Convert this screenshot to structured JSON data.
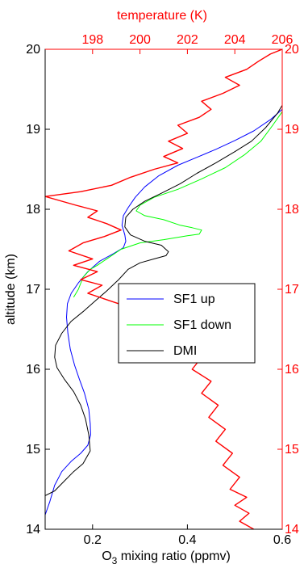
{
  "chart_data": {
    "type": "line",
    "bottom_axis": {
      "label": "O3 mixing ratio (ppmv)",
      "label_main": "O",
      "label_sub": "3",
      "label_rest": " mixing ratio (ppmv)",
      "range": [
        0.1,
        0.6
      ],
      "ticks": [
        0.2,
        0.4,
        0.6
      ],
      "tick_labels": [
        "0.2",
        "0.4",
        "0.6"
      ],
      "color": "#000000"
    },
    "top_axis": {
      "label": "temperature (K)",
      "range": [
        196,
        206
      ],
      "ticks": [
        198,
        200,
        202,
        204,
        206
      ],
      "tick_labels": [
        "198",
        "200",
        "202",
        "204",
        "206"
      ],
      "color": "#ff0000"
    },
    "left_axis": {
      "label": "altitude (km)",
      "range": [
        14,
        20
      ],
      "ticks": [
        14,
        15,
        16,
        17,
        18,
        19,
        20
      ],
      "tick_labels": [
        "14",
        "15",
        "16",
        "17",
        "18",
        "19",
        "20"
      ],
      "color": "#000000"
    },
    "right_axis": {
      "range": [
        14,
        20
      ],
      "ticks": [
        14,
        15,
        16,
        17,
        18,
        19,
        20
      ],
      "tick_labels": [
        "14",
        "15",
        "16",
        "17",
        "18",
        "19",
        "20"
      ],
      "color": "#ff0000"
    },
    "grid": false,
    "legend_position": "center-right",
    "legend": [
      "SF1 up",
      "SF1 down",
      "DMI"
    ],
    "series": [
      {
        "name": "SF1 up",
        "axis": "bottom",
        "color": "#0000ff",
        "points": [
          [
            0.1,
            14.18
          ],
          [
            0.11,
            14.35
          ],
          [
            0.12,
            14.55
          ],
          [
            0.135,
            14.72
          ],
          [
            0.155,
            14.85
          ],
          [
            0.175,
            14.95
          ],
          [
            0.19,
            15.05
          ],
          [
            0.196,
            15.18
          ],
          [
            0.195,
            15.32
          ],
          [
            0.192,
            15.5
          ],
          [
            0.183,
            15.7
          ],
          [
            0.172,
            15.88
          ],
          [
            0.162,
            16.05
          ],
          [
            0.153,
            16.25
          ],
          [
            0.148,
            16.45
          ],
          [
            0.145,
            16.65
          ],
          [
            0.147,
            16.82
          ],
          [
            0.155,
            16.95
          ],
          [
            0.17,
            17.08
          ],
          [
            0.19,
            17.22
          ],
          [
            0.215,
            17.35
          ],
          [
            0.245,
            17.45
          ],
          [
            0.265,
            17.52
          ],
          [
            0.27,
            17.6
          ],
          [
            0.268,
            17.68
          ],
          [
            0.262,
            17.8
          ],
          [
            0.265,
            17.92
          ],
          [
            0.275,
            18.02
          ],
          [
            0.29,
            18.15
          ],
          [
            0.31,
            18.28
          ],
          [
            0.34,
            18.42
          ],
          [
            0.38,
            18.55
          ],
          [
            0.42,
            18.65
          ],
          [
            0.46,
            18.75
          ],
          [
            0.5,
            18.86
          ],
          [
            0.54,
            18.98
          ],
          [
            0.575,
            19.12
          ],
          [
            0.6,
            19.25
          ]
        ]
      },
      {
        "name": "SF1 down",
        "axis": "bottom",
        "color": "#00ff00",
        "points": [
          [
            0.16,
            16.9
          ],
          [
            0.17,
            17.0
          ],
          [
            0.18,
            17.15
          ],
          [
            0.195,
            17.25
          ],
          [
            0.21,
            17.3
          ],
          [
            0.23,
            17.38
          ],
          [
            0.26,
            17.5
          ],
          [
            0.3,
            17.58
          ],
          [
            0.35,
            17.62
          ],
          [
            0.4,
            17.67
          ],
          [
            0.425,
            17.69
          ],
          [
            0.43,
            17.74
          ],
          [
            0.41,
            17.77
          ],
          [
            0.385,
            17.8
          ],
          [
            0.35,
            17.87
          ],
          [
            0.31,
            17.92
          ],
          [
            0.292,
            17.98
          ],
          [
            0.3,
            18.05
          ],
          [
            0.33,
            18.15
          ],
          [
            0.38,
            18.25
          ],
          [
            0.43,
            18.38
          ],
          [
            0.48,
            18.52
          ],
          [
            0.52,
            18.68
          ],
          [
            0.555,
            18.85
          ],
          [
            0.58,
            19.05
          ],
          [
            0.6,
            19.22
          ]
        ]
      },
      {
        "name": "DMI",
        "axis": "bottom",
        "color": "#000000",
        "points": [
          [
            0.1,
            14.42
          ],
          [
            0.12,
            14.48
          ],
          [
            0.14,
            14.6
          ],
          [
            0.16,
            14.72
          ],
          [
            0.18,
            14.82
          ],
          [
            0.195,
            14.98
          ],
          [
            0.192,
            15.18
          ],
          [
            0.185,
            15.38
          ],
          [
            0.175,
            15.55
          ],
          [
            0.16,
            15.72
          ],
          [
            0.14,
            15.88
          ],
          [
            0.125,
            16.02
          ],
          [
            0.12,
            16.15
          ],
          [
            0.122,
            16.3
          ],
          [
            0.135,
            16.45
          ],
          [
            0.155,
            16.6
          ],
          [
            0.18,
            16.72
          ],
          [
            0.205,
            16.85
          ],
          [
            0.23,
            16.98
          ],
          [
            0.255,
            17.12
          ],
          [
            0.275,
            17.25
          ],
          [
            0.3,
            17.33
          ],
          [
            0.33,
            17.38
          ],
          [
            0.355,
            17.42
          ],
          [
            0.36,
            17.47
          ],
          [
            0.345,
            17.55
          ],
          [
            0.31,
            17.6
          ],
          [
            0.28,
            17.68
          ],
          [
            0.268,
            17.78
          ],
          [
            0.27,
            17.9
          ],
          [
            0.285,
            18.0
          ],
          [
            0.31,
            18.1
          ],
          [
            0.345,
            18.2
          ],
          [
            0.385,
            18.32
          ],
          [
            0.42,
            18.45
          ],
          [
            0.46,
            18.58
          ],
          [
            0.5,
            18.72
          ],
          [
            0.535,
            18.85
          ],
          [
            0.565,
            19.02
          ],
          [
            0.59,
            19.2
          ],
          [
            0.6,
            19.3
          ]
        ]
      },
      {
        "name": "temperature",
        "axis": "top",
        "color": "#ff0000",
        "points": [
          [
            204.8,
            14.0
          ],
          [
            204.2,
            14.1
          ],
          [
            204.6,
            14.2
          ],
          [
            204.0,
            14.3
          ],
          [
            204.5,
            14.4
          ],
          [
            203.8,
            14.5
          ],
          [
            204.2,
            14.65
          ],
          [
            203.5,
            14.8
          ],
          [
            203.9,
            14.95
          ],
          [
            203.2,
            15.1
          ],
          [
            203.6,
            15.25
          ],
          [
            202.9,
            15.4
          ],
          [
            203.3,
            15.55
          ],
          [
            202.6,
            15.7
          ],
          [
            203.0,
            15.85
          ],
          [
            202.2,
            16.0
          ],
          [
            202.6,
            16.15
          ],
          [
            201.8,
            16.3
          ],
          [
            202.2,
            16.42
          ],
          [
            201.3,
            16.55
          ],
          [
            200.5,
            16.68
          ],
          [
            199.5,
            16.78
          ],
          [
            198.6,
            16.87
          ],
          [
            197.8,
            16.95
          ],
          [
            198.4,
            17.05
          ],
          [
            197.5,
            17.12
          ],
          [
            198.2,
            17.22
          ],
          [
            197.2,
            17.3
          ],
          [
            198.0,
            17.38
          ],
          [
            197.0,
            17.48
          ],
          [
            197.6,
            17.58
          ],
          [
            198.5,
            17.66
          ],
          [
            199.2,
            17.74
          ],
          [
            198.6,
            17.82
          ],
          [
            197.8,
            17.9
          ],
          [
            198.2,
            17.98
          ],
          [
            197.3,
            18.05
          ],
          [
            196.0,
            18.16
          ],
          [
            197.5,
            18.22
          ],
          [
            198.8,
            18.3
          ],
          [
            199.6,
            18.4
          ],
          [
            200.6,
            18.5
          ],
          [
            201.6,
            18.58
          ],
          [
            201.0,
            18.66
          ],
          [
            201.8,
            18.76
          ],
          [
            201.2,
            18.85
          ],
          [
            202.0,
            18.95
          ],
          [
            201.6,
            19.05
          ],
          [
            202.5,
            19.15
          ],
          [
            203.0,
            19.25
          ],
          [
            202.6,
            19.35
          ],
          [
            203.5,
            19.45
          ],
          [
            204.2,
            19.55
          ],
          [
            203.6,
            19.65
          ],
          [
            204.5,
            19.75
          ],
          [
            205.0,
            19.85
          ],
          [
            205.5,
            19.94
          ],
          [
            206.0,
            20.0
          ]
        ]
      }
    ]
  }
}
